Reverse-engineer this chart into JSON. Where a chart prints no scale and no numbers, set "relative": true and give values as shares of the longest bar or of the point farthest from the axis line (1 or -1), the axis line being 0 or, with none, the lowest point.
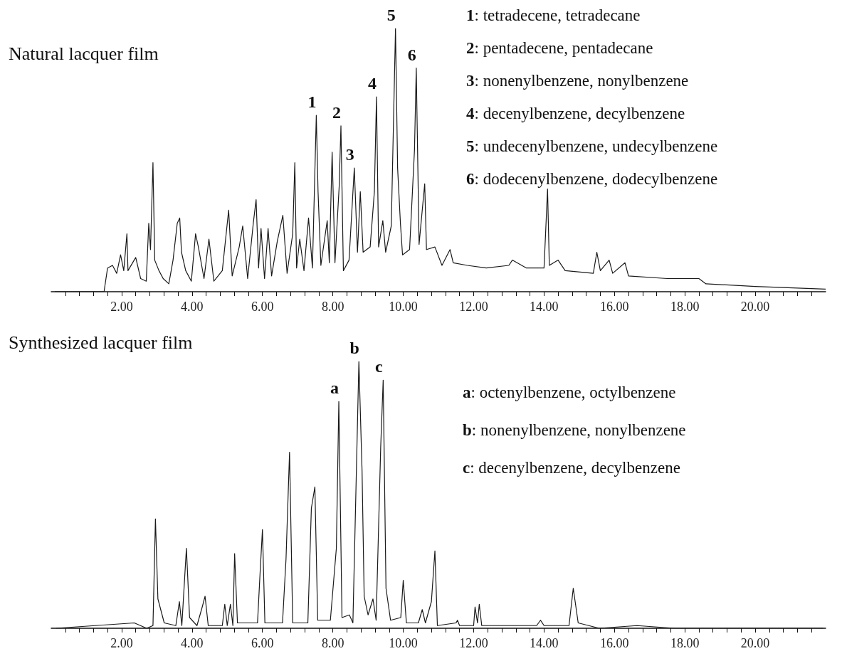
{
  "chart_data": [
    {
      "type": "line",
      "title": "Natural lacquer film",
      "relative": true,
      "color": "#1a1a1a",
      "marker": "none",
      "x": [
        0.1,
        1.5,
        1.6,
        1.74,
        1.86,
        1.97,
        2.06,
        2.15,
        2.18,
        2.4,
        2.54,
        2.7,
        2.77,
        2.82,
        2.89,
        2.94,
        3.06,
        3.18,
        3.34,
        3.46,
        3.58,
        3.65,
        3.7,
        3.82,
        3.98,
        4.1,
        4.18,
        4.34,
        4.48,
        4.62,
        4.86,
        5.04,
        5.14,
        5.34,
        5.44,
        5.58,
        5.74,
        5.82,
        5.89,
        5.96,
        6.06,
        6.16,
        6.26,
        6.42,
        6.58,
        6.7,
        6.86,
        6.92,
        6.97,
        7.06,
        7.18,
        7.31,
        7.42,
        7.53,
        7.58,
        7.66,
        7.84,
        7.9,
        7.98,
        8.06,
        8.18,
        8.23,
        8.3,
        8.46,
        8.61,
        8.7,
        8.78,
        8.86,
        9.06,
        9.18,
        9.24,
        9.3,
        9.42,
        9.5,
        9.66,
        9.78,
        9.84,
        9.92,
        9.98,
        10.18,
        10.32,
        10.37,
        10.45,
        10.61,
        10.66,
        10.9,
        11.1,
        11.33,
        11.42,
        11.82,
        12.36,
        13.0,
        13.1,
        13.5,
        14.0,
        14.1,
        14.15,
        14.4,
        14.6,
        15.4,
        15.5,
        15.6,
        15.85,
        15.95,
        16.3,
        16.4,
        17.5,
        18.4,
        18.6,
        20,
        22
      ],
      "values": [
        0,
        0,
        0.09,
        0.1,
        0.07,
        0.14,
        0.08,
        0.22,
        0.08,
        0.13,
        0.05,
        0.04,
        0.26,
        0.16,
        0.49,
        0.12,
        0.08,
        0.05,
        0.03,
        0.12,
        0.26,
        0.28,
        0.15,
        0.08,
        0.04,
        0.22,
        0.17,
        0.05,
        0.2,
        0.04,
        0.08,
        0.31,
        0.06,
        0.17,
        0.25,
        0.05,
        0.26,
        0.35,
        0.09,
        0.24,
        0.05,
        0.24,
        0.06,
        0.19,
        0.29,
        0.07,
        0.22,
        0.49,
        0.09,
        0.2,
        0.08,
        0.28,
        0.09,
        0.67,
        0.38,
        0.1,
        0.27,
        0.11,
        0.53,
        0.11,
        0.4,
        0.63,
        0.08,
        0.12,
        0.47,
        0.15,
        0.38,
        0.15,
        0.17,
        0.38,
        0.74,
        0.17,
        0.27,
        0.15,
        0.25,
        1,
        0.47,
        0.26,
        0.14,
        0.16,
        0.54,
        0.85,
        0.18,
        0.41,
        0.16,
        0.17,
        0.1,
        0.16,
        0.11,
        0.1,
        0.09,
        0.1,
        0.12,
        0.09,
        0.09,
        0.39,
        0.1,
        0.12,
        0.08,
        0.07,
        0.15,
        0.08,
        0.12,
        0.07,
        0.11,
        0.06,
        0.05,
        0.05,
        0.03,
        0.02,
        0.01
      ],
      "xlim": [
        0,
        22
      ],
      "xticks": [
        {
          "value": 0.4,
          "label": null
        },
        {
          "value": 0.8,
          "label": null
        },
        {
          "value": 1.2,
          "label": null
        },
        {
          "value": 1.6,
          "label": null
        },
        {
          "value": 2,
          "label": "2.00"
        },
        {
          "value": 2.4,
          "label": null
        },
        {
          "value": 2.8,
          "label": null
        },
        {
          "value": 3.2,
          "label": null
        },
        {
          "value": 3.6,
          "label": null
        },
        {
          "value": 4,
          "label": "4.00"
        },
        {
          "value": 4.4,
          "label": null
        },
        {
          "value": 4.8,
          "label": null
        },
        {
          "value": 5.2,
          "label": null
        },
        {
          "value": 5.6,
          "label": null
        },
        {
          "value": 6,
          "label": "6.00"
        },
        {
          "value": 6.4,
          "label": null
        },
        {
          "value": 6.8,
          "label": null
        },
        {
          "value": 7.2,
          "label": null
        },
        {
          "value": 7.6,
          "label": null
        },
        {
          "value": 8,
          "label": "8.00"
        },
        {
          "value": 8.4,
          "label": null
        },
        {
          "value": 8.8,
          "label": null
        },
        {
          "value": 9.2,
          "label": null
        },
        {
          "value": 9.6,
          "label": null
        },
        {
          "value": 10,
          "label": "10.00"
        },
        {
          "value": 10.4,
          "label": null
        },
        {
          "value": 10.8,
          "label": null
        },
        {
          "value": 11.2,
          "label": null
        },
        {
          "value": 11.6,
          "label": null
        },
        {
          "value": 12,
          "label": "12.00"
        },
        {
          "value": 12.4,
          "label": null
        },
        {
          "value": 12.8,
          "label": null
        },
        {
          "value": 13.2,
          "label": null
        },
        {
          "value": 13.6,
          "label": null
        },
        {
          "value": 14,
          "label": "14.00"
        },
        {
          "value": 14.4,
          "label": null
        },
        {
          "value": 14.8,
          "label": null
        },
        {
          "value": 15.2,
          "label": null
        },
        {
          "value": 15.6,
          "label": null
        },
        {
          "value": 16,
          "label": "16.00"
        },
        {
          "value": 16.4,
          "label": null
        },
        {
          "value": 16.8,
          "label": null
        },
        {
          "value": 17.2,
          "label": null
        },
        {
          "value": 17.6,
          "label": null
        },
        {
          "value": 18,
          "label": "18.00"
        },
        {
          "value": 18.4,
          "label": null
        },
        {
          "value": 18.8,
          "label": null
        },
        {
          "value": 19.2,
          "label": null
        },
        {
          "value": 19.6,
          "label": null
        },
        {
          "value": 20,
          "label": "20.00"
        },
        {
          "value": 20.4,
          "label": null
        },
        {
          "value": 20.8,
          "label": null
        },
        {
          "value": 21.2,
          "label": null
        },
        {
          "value": 21.6,
          "label": null
        }
      ],
      "annotations": [
        {
          "text": "1",
          "x": 7.53,
          "y": 0.67
        },
        {
          "text": "2",
          "x": 8.23,
          "y": 0.63
        },
        {
          "text": "3",
          "x": 8.61,
          "y": 0.47
        },
        {
          "text": "4",
          "x": 9.24,
          "y": 0.74
        },
        {
          "text": "5",
          "x": 9.78,
          "y": 1
        },
        {
          "text": "6",
          "x": 10.37,
          "y": 0.85
        },
        "1: tetradecene, tetradecane",
        "2: pentadecene, pentadecane",
        "3: nonenylbenzene, nonylbenzene",
        "4: decenylbenzene, decylbenzene",
        "5: undecenylbenzene, undecylbenzene",
        "6: dodecenylbenzene, dodecylbenzene"
      ]
    },
    {
      "type": "line",
      "title": "Synthesized lacquer film",
      "relative": true,
      "color": "#1a1a1a",
      "marker": "none",
      "x": [
        0.14,
        2.36,
        2.71,
        2.89,
        2.96,
        3.03,
        3.21,
        3.54,
        3.64,
        3.71,
        3.84,
        3.93,
        4.14,
        4.29,
        4.37,
        4.46,
        4.86,
        4.93,
        5.0,
        5.09,
        5.16,
        5.21,
        5.29,
        5.86,
        5.93,
        6.0,
        6.07,
        6.57,
        6.67,
        6.77,
        6.86,
        7.29,
        7.39,
        7.49,
        7.57,
        7.93,
        8.1,
        8.17,
        8.26,
        8.47,
        8.57,
        8.74,
        8.83,
        8.89,
        9.0,
        9.14,
        9.23,
        9.36,
        9.43,
        9.51,
        9.64,
        9.93,
        10.0,
        10.09,
        10.43,
        10.54,
        10.63,
        10.8,
        10.9,
        10.97,
        11.5,
        11.54,
        11.6,
        12.0,
        12.04,
        12.11,
        12.16,
        12.23,
        13.79,
        13.9,
        14.0,
        14.71,
        14.83,
        14.97,
        15.57,
        16.64,
        17.71,
        21.93
      ],
      "values": [
        0,
        0.02,
        0,
        0.01,
        0.41,
        0.11,
        0.02,
        0.01,
        0.1,
        0.01,
        0.3,
        0.04,
        0.01,
        0.08,
        0.12,
        0.01,
        0.01,
        0.09,
        0.01,
        0.09,
        0.01,
        0.28,
        0.02,
        0.02,
        0.2,
        0.37,
        0.02,
        0.02,
        0.26,
        0.66,
        0.02,
        0.02,
        0.45,
        0.53,
        0.03,
        0.03,
        0.3,
        0.85,
        0.04,
        0.05,
        0.02,
        1,
        0.59,
        0.12,
        0.05,
        0.11,
        0.03,
        0.68,
        0.93,
        0.15,
        0.03,
        0.04,
        0.18,
        0.02,
        0.02,
        0.07,
        0.02,
        0.1,
        0.29,
        0.01,
        0.02,
        0.03,
        0.01,
        0.01,
        0.08,
        0.02,
        0.09,
        0.01,
        0.01,
        0.03,
        0.01,
        0.01,
        0.15,
        0.02,
        0,
        0.01,
        0,
        0
      ],
      "xlim": [
        0,
        22
      ],
      "xticks": [
        {
          "value": 0.4,
          "label": null
        },
        {
          "value": 0.8,
          "label": null
        },
        {
          "value": 1.2,
          "label": null
        },
        {
          "value": 1.6,
          "label": null
        },
        {
          "value": 2,
          "label": "2.00"
        },
        {
          "value": 2.4,
          "label": null
        },
        {
          "value": 2.8,
          "label": null
        },
        {
          "value": 3.2,
          "label": null
        },
        {
          "value": 3.6,
          "label": null
        },
        {
          "value": 4,
          "label": "4.00"
        },
        {
          "value": 4.4,
          "label": null
        },
        {
          "value": 4.8,
          "label": null
        },
        {
          "value": 5.2,
          "label": null
        },
        {
          "value": 5.6,
          "label": null
        },
        {
          "value": 6,
          "label": "6.00"
        },
        {
          "value": 6.4,
          "label": null
        },
        {
          "value": 6.8,
          "label": null
        },
        {
          "value": 7.2,
          "label": null
        },
        {
          "value": 7.6,
          "label": null
        },
        {
          "value": 8,
          "label": "8.00"
        },
        {
          "value": 8.4,
          "label": null
        },
        {
          "value": 8.8,
          "label": null
        },
        {
          "value": 9.2,
          "label": null
        },
        {
          "value": 9.6,
          "label": null
        },
        {
          "value": 10,
          "label": "10.00"
        },
        {
          "value": 10.4,
          "label": null
        },
        {
          "value": 10.8,
          "label": null
        },
        {
          "value": 11.2,
          "label": null
        },
        {
          "value": 11.6,
          "label": null
        },
        {
          "value": 12,
          "label": "12.00"
        },
        {
          "value": 12.4,
          "label": null
        },
        {
          "value": 12.8,
          "label": null
        },
        {
          "value": 13.2,
          "label": null
        },
        {
          "value": 13.6,
          "label": null
        },
        {
          "value": 14,
          "label": "14.00"
        },
        {
          "value": 14.4,
          "label": null
        },
        {
          "value": 14.8,
          "label": null
        },
        {
          "value": 15.2,
          "label": null
        },
        {
          "value": 15.6,
          "label": null
        },
        {
          "value": 16,
          "label": "16.00"
        },
        {
          "value": 16.4,
          "label": null
        },
        {
          "value": 16.8,
          "label": null
        },
        {
          "value": 17.2,
          "label": null
        },
        {
          "value": 17.6,
          "label": null
        },
        {
          "value": 18,
          "label": "18.00"
        },
        {
          "value": 18.4,
          "label": null
        },
        {
          "value": 18.8,
          "label": null
        },
        {
          "value": 19.2,
          "label": null
        },
        {
          "value": 19.6,
          "label": null
        },
        {
          "value": 20,
          "label": "20.00"
        },
        {
          "value": 20.4,
          "label": null
        },
        {
          "value": 20.8,
          "label": null
        },
        {
          "value": 21.2,
          "label": null
        },
        {
          "value": 21.6,
          "label": null
        }
      ],
      "annotations": [
        {
          "text": "a",
          "x": 8.17,
          "y": 0.85
        },
        {
          "text": "b",
          "x": 8.74,
          "y": 1
        },
        {
          "text": "c",
          "x": 9.43,
          "y": 0.93
        },
        "a: octenylbenzene, octylbenzene",
        "b: nonenylbenzene, nonylbenzene",
        "c: decenylbenzene, decylbenzene"
      ]
    }
  ]
}
